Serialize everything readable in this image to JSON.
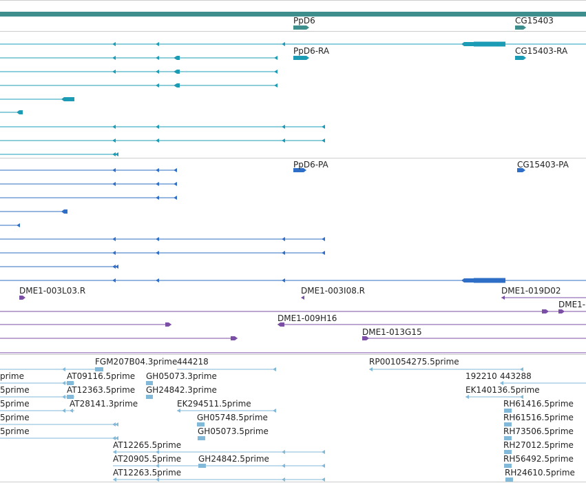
{
  "colors": {
    "genes": "#3e8e8d",
    "rna": "#1c9bb5",
    "protein": "#2e6ec6",
    "clones": "#7b4fa6",
    "ests": "#82b8d8"
  },
  "gene_labels": [
    "PpD6",
    "CG15403"
  ],
  "rna_labels": [
    "PpD6-RA",
    "CG15403-RA"
  ],
  "protein_labels": [
    "PpD6-PA",
    "CG15403-PA"
  ],
  "clone_labels": [
    "DME1-003L03.R",
    "DME1-003I08.R",
    "DME1-019D02",
    "DME1-",
    "DME1-009H16",
    "DME1-013G15"
  ],
  "est_labels": [
    "FGM207B04.3prime",
    "444218",
    "RP001054275.5prime",
    "prime",
    "AT09116.5prime",
    "GH05073.3prime",
    "192210",
    "443288",
    "5prime",
    "AT12363.5prime",
    "GH24842.3prime",
    "EK140136.5prime",
    "5prime",
    "AT28141.3prime",
    "EK294511.5prime",
    "RH61416.5prime",
    "5prime",
    "GH05748.5prime",
    "RH61516.5prime",
    "5prime",
    "GH05073.5prime",
    "RH73506.5prime",
    "AT12265.5prime",
    "RH27012.5prime",
    "AT20905.5prime",
    "GH24842.5prime",
    "RH56492.5prime",
    "AT12263.5prime",
    "RH24610.5prime"
  ]
}
